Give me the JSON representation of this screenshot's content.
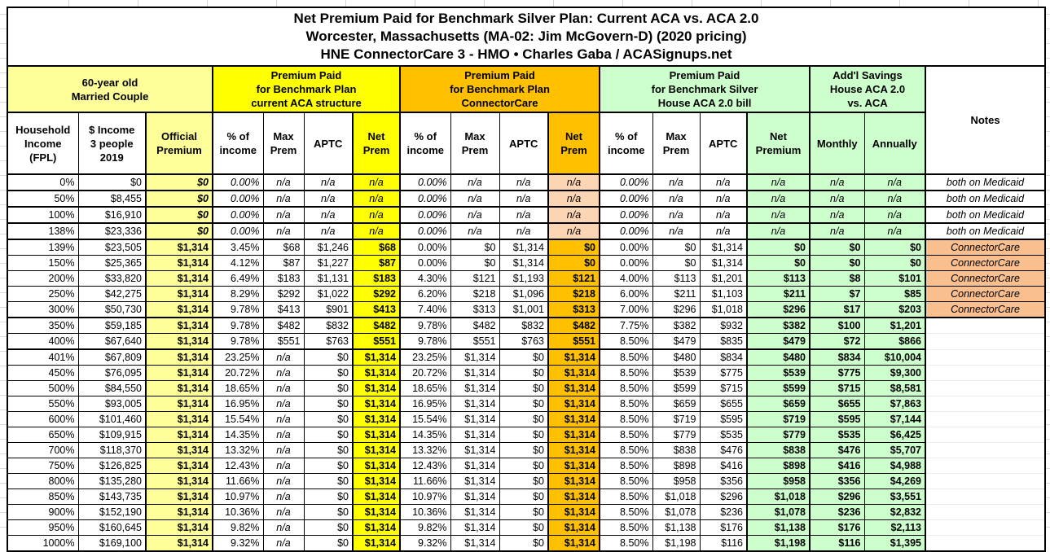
{
  "chart_data": {
    "type": "table",
    "title_lines": [
      "Net Premium Paid for Benchmark Silver Plan: Current ACA vs. ACA 2.0",
      "Worcester, Massachusetts (MA-02: Jim McGovern-D) (2020 pricing)",
      "HNE ConnectorCare 3 - HMO • Charles Gaba / ACASignups.net"
    ],
    "group_headers": {
      "couple": "60-year old\nMarried Couple",
      "aca": "Premium Paid\nfor Benchmark Plan\ncurrent ACA structure",
      "connectorcare": "Premium Paid\nfor Benchmark Plan\nConnectorCare",
      "aca20": "Premium Paid\nfor Benchmark Silver\nHouse ACA 2.0 bill",
      "savings": "Add'l Savings\nHouse ACA 2.0\nvs. ACA",
      "notes": "Notes"
    },
    "column_headers": {
      "fpl": "Household\nIncome\n(FPL)",
      "income": "$ Income\n3 people\n2019",
      "official": "Official\nPremium",
      "pct": "% of\nincome",
      "max": "Max\nPrem",
      "aptc": "APTC",
      "net": "Net\nPrem",
      "net_premium": "Net\nPremium",
      "monthly": "Monthly",
      "annually": "Annually"
    },
    "sections": [
      {
        "name": "medicaid",
        "rows": [
          {
            "fpl": "0%",
            "income": "$0",
            "official": "$0",
            "aca": [
              "0.00%",
              "n/a",
              "n/a",
              "n/a"
            ],
            "cc": [
              "0.00%",
              "n/a",
              "n/a",
              "n/a"
            ],
            "aca2": [
              "0.00%",
              "n/a",
              "n/a",
              "n/a"
            ],
            "monthly": "n/a",
            "annually": "n/a",
            "note": "both on Medicaid"
          },
          {
            "fpl": "50%",
            "income": "$8,455",
            "official": "$0",
            "aca": [
              "0.00%",
              "n/a",
              "n/a",
              "n/a"
            ],
            "cc": [
              "0.00%",
              "n/a",
              "n/a",
              "n/a"
            ],
            "aca2": [
              "0.00%",
              "n/a",
              "n/a",
              "n/a"
            ],
            "monthly": "n/a",
            "annually": "n/a",
            "note": "both on Medicaid"
          },
          {
            "fpl": "100%",
            "income": "$16,910",
            "official": "$0",
            "aca": [
              "0.00%",
              "n/a",
              "n/a",
              "n/a"
            ],
            "cc": [
              "0.00%",
              "n/a",
              "n/a",
              "n/a"
            ],
            "aca2": [
              "0.00%",
              "n/a",
              "n/a",
              "n/a"
            ],
            "monthly": "n/a",
            "annually": "n/a",
            "note": "both on Medicaid"
          },
          {
            "fpl": "138%",
            "income": "$23,336",
            "official": "$0",
            "aca": [
              "0.00%",
              "n/a",
              "n/a",
              "n/a"
            ],
            "cc": [
              "0.00%",
              "n/a",
              "n/a",
              "n/a"
            ],
            "aca2": [
              "0.00%",
              "n/a",
              "n/a",
              "n/a"
            ],
            "monthly": "n/a",
            "annually": "n/a",
            "note": "both on Medicaid"
          }
        ]
      },
      {
        "name": "connectorcare",
        "rows": [
          {
            "fpl": "139%",
            "income": "$23,505",
            "official": "$1,314",
            "aca": [
              "3.45%",
              "$68",
              "$1,246",
              "$68"
            ],
            "cc": [
              "0.00%",
              "$0",
              "$1,314",
              "$0"
            ],
            "aca2": [
              "0.00%",
              "$0",
              "$1,314",
              "$0"
            ],
            "monthly": "$0",
            "annually": "$0",
            "note": "ConnectorCare"
          },
          {
            "fpl": "150%",
            "income": "$25,365",
            "official": "$1,314",
            "aca": [
              "4.12%",
              "$87",
              "$1,227",
              "$87"
            ],
            "cc": [
              "0.00%",
              "$0",
              "$1,314",
              "$0"
            ],
            "aca2": [
              "0.00%",
              "$0",
              "$1,314",
              "$0"
            ],
            "monthly": "$0",
            "annually": "$0",
            "note": "ConnectorCare"
          },
          {
            "fpl": "200%",
            "income": "$33,820",
            "official": "$1,314",
            "aca": [
              "6.49%",
              "$183",
              "$1,131",
              "$183"
            ],
            "cc": [
              "4.30%",
              "$121",
              "$1,193",
              "$121"
            ],
            "aca2": [
              "4.00%",
              "$113",
              "$1,201",
              "$113"
            ],
            "monthly": "$8",
            "annually": "$101",
            "note": "ConnectorCare"
          },
          {
            "fpl": "250%",
            "income": "$42,275",
            "official": "$1,314",
            "aca": [
              "8.29%",
              "$292",
              "$1,022",
              "$292"
            ],
            "cc": [
              "6.20%",
              "$218",
              "$1,096",
              "$218"
            ],
            "aca2": [
              "6.00%",
              "$211",
              "$1,103",
              "$211"
            ],
            "monthly": "$7",
            "annually": "$85",
            "note": "ConnectorCare"
          },
          {
            "fpl": "300%",
            "income": "$50,730",
            "official": "$1,314",
            "aca": [
              "9.78%",
              "$413",
              "$901",
              "$413"
            ],
            "cc": [
              "7.40%",
              "$313",
              "$1,001",
              "$313"
            ],
            "aca2": [
              "7.00%",
              "$296",
              "$1,018",
              "$296"
            ],
            "monthly": "$17",
            "annually": "$203",
            "note": "ConnectorCare"
          }
        ]
      },
      {
        "name": "cliff",
        "rows": [
          {
            "fpl": "350%",
            "income": "$59,185",
            "official": "$1,314",
            "aca": [
              "9.78%",
              "$482",
              "$832",
              "$482"
            ],
            "cc": [
              "9.78%",
              "$482",
              "$832",
              "$482"
            ],
            "aca2": [
              "7.75%",
              "$382",
              "$932",
              "$382"
            ],
            "monthly": "$100",
            "annually": "$1,201",
            "note": ""
          },
          {
            "fpl": "400%",
            "income": "$67,640",
            "official": "$1,314",
            "aca": [
              "9.78%",
              "$551",
              "$763",
              "$551"
            ],
            "cc": [
              "9.78%",
              "$551",
              "$763",
              "$551"
            ],
            "aca2": [
              "8.50%",
              "$479",
              "$835",
              "$479"
            ],
            "monthly": "$72",
            "annually": "$866",
            "note": ""
          }
        ]
      },
      {
        "name": "above-400",
        "rows": [
          {
            "fpl": "401%",
            "income": "$67,809",
            "official": "$1,314",
            "aca": [
              "23.25%",
              "n/a",
              "$0",
              "$1,314"
            ],
            "cc": [
              "23.25%",
              "$1,314",
              "$0",
              "$1,314"
            ],
            "aca2": [
              "8.50%",
              "$480",
              "$834",
              "$480"
            ],
            "monthly": "$834",
            "annually": "$10,004",
            "note": ""
          },
          {
            "fpl": "450%",
            "income": "$76,095",
            "official": "$1,314",
            "aca": [
              "20.72%",
              "n/a",
              "$0",
              "$1,314"
            ],
            "cc": [
              "20.72%",
              "$1,314",
              "$0",
              "$1,314"
            ],
            "aca2": [
              "8.50%",
              "$539",
              "$775",
              "$539"
            ],
            "monthly": "$775",
            "annually": "$9,300",
            "note": ""
          },
          {
            "fpl": "500%",
            "income": "$84,550",
            "official": "$1,314",
            "aca": [
              "18.65%",
              "n/a",
              "$0",
              "$1,314"
            ],
            "cc": [
              "18.65%",
              "$1,314",
              "$0",
              "$1,314"
            ],
            "aca2": [
              "8.50%",
              "$599",
              "$715",
              "$599"
            ],
            "monthly": "$715",
            "annually": "$8,581",
            "note": ""
          },
          {
            "fpl": "550%",
            "income": "$93,005",
            "official": "$1,314",
            "aca": [
              "16.95%",
              "n/a",
              "$0",
              "$1,314"
            ],
            "cc": [
              "16.95%",
              "$1,314",
              "$0",
              "$1,314"
            ],
            "aca2": [
              "8.50%",
              "$659",
              "$655",
              "$659"
            ],
            "monthly": "$655",
            "annually": "$7,863",
            "note": ""
          },
          {
            "fpl": "600%",
            "income": "$101,460",
            "official": "$1,314",
            "aca": [
              "15.54%",
              "n/a",
              "$0",
              "$1,314"
            ],
            "cc": [
              "15.54%",
              "$1,314",
              "$0",
              "$1,314"
            ],
            "aca2": [
              "8.50%",
              "$719",
              "$595",
              "$719"
            ],
            "monthly": "$595",
            "annually": "$7,144",
            "note": ""
          },
          {
            "fpl": "650%",
            "income": "$109,915",
            "official": "$1,314",
            "aca": [
              "14.35%",
              "n/a",
              "$0",
              "$1,314"
            ],
            "cc": [
              "14.35%",
              "$1,314",
              "$0",
              "$1,314"
            ],
            "aca2": [
              "8.50%",
              "$779",
              "$535",
              "$779"
            ],
            "monthly": "$535",
            "annually": "$6,425",
            "note": ""
          },
          {
            "fpl": "700%",
            "income": "$118,370",
            "official": "$1,314",
            "aca": [
              "13.32%",
              "n/a",
              "$0",
              "$1,314"
            ],
            "cc": [
              "13.32%",
              "$1,314",
              "$0",
              "$1,314"
            ],
            "aca2": [
              "8.50%",
              "$838",
              "$476",
              "$838"
            ],
            "monthly": "$476",
            "annually": "$5,707",
            "note": ""
          },
          {
            "fpl": "750%",
            "income": "$126,825",
            "official": "$1,314",
            "aca": [
              "12.43%",
              "n/a",
              "$0",
              "$1,314"
            ],
            "cc": [
              "12.43%",
              "$1,314",
              "$0",
              "$1,314"
            ],
            "aca2": [
              "8.50%",
              "$898",
              "$416",
              "$898"
            ],
            "monthly": "$416",
            "annually": "$4,988",
            "note": ""
          },
          {
            "fpl": "800%",
            "income": "$135,280",
            "official": "$1,314",
            "aca": [
              "11.66%",
              "n/a",
              "$0",
              "$1,314"
            ],
            "cc": [
              "11.66%",
              "$1,314",
              "$0",
              "$1,314"
            ],
            "aca2": [
              "8.50%",
              "$958",
              "$356",
              "$958"
            ],
            "monthly": "$356",
            "annually": "$4,269",
            "note": ""
          },
          {
            "fpl": "850%",
            "income": "$143,735",
            "official": "$1,314",
            "aca": [
              "10.97%",
              "n/a",
              "$0",
              "$1,314"
            ],
            "cc": [
              "10.97%",
              "$1,314",
              "$0",
              "$1,314"
            ],
            "aca2": [
              "8.50%",
              "$1,018",
              "$296",
              "$1,018"
            ],
            "monthly": "$296",
            "annually": "$3,551",
            "note": ""
          },
          {
            "fpl": "900%",
            "income": "$152,190",
            "official": "$1,314",
            "aca": [
              "10.36%",
              "n/a",
              "$0",
              "$1,314"
            ],
            "cc": [
              "10.36%",
              "$1,314",
              "$0",
              "$1,314"
            ],
            "aca2": [
              "8.50%",
              "$1,078",
              "$236",
              "$1,078"
            ],
            "monthly": "$236",
            "annually": "$2,832",
            "note": ""
          },
          {
            "fpl": "950%",
            "income": "$160,645",
            "official": "$1,314",
            "aca": [
              "9.82%",
              "n/a",
              "$0",
              "$1,314"
            ],
            "cc": [
              "9.82%",
              "$1,314",
              "$0",
              "$1,314"
            ],
            "aca2": [
              "8.50%",
              "$1,138",
              "$176",
              "$1,138"
            ],
            "monthly": "$176",
            "annually": "$2,113",
            "note": ""
          },
          {
            "fpl": "1000%",
            "income": "$169,100",
            "official": "$1,314",
            "aca": [
              "9.32%",
              "n/a",
              "$0",
              "$1,314"
            ],
            "cc": [
              "9.32%",
              "$1,314",
              "$0",
              "$1,314"
            ],
            "aca2": [
              "8.50%",
              "$1,198",
              "$116",
              "$1,198"
            ],
            "monthly": "$116",
            "annually": "$1,395",
            "note": ""
          }
        ]
      }
    ]
  },
  "colors": {
    "light_yellow": "#FFFF99",
    "yellow": "#FFFF00",
    "gold": "#FFC000",
    "light_green": "#CCFFCC",
    "peach": "#FCD5B4",
    "notes_orange": "#FABF8F",
    "border": "#000000",
    "gridline": "#D6D6D6"
  }
}
